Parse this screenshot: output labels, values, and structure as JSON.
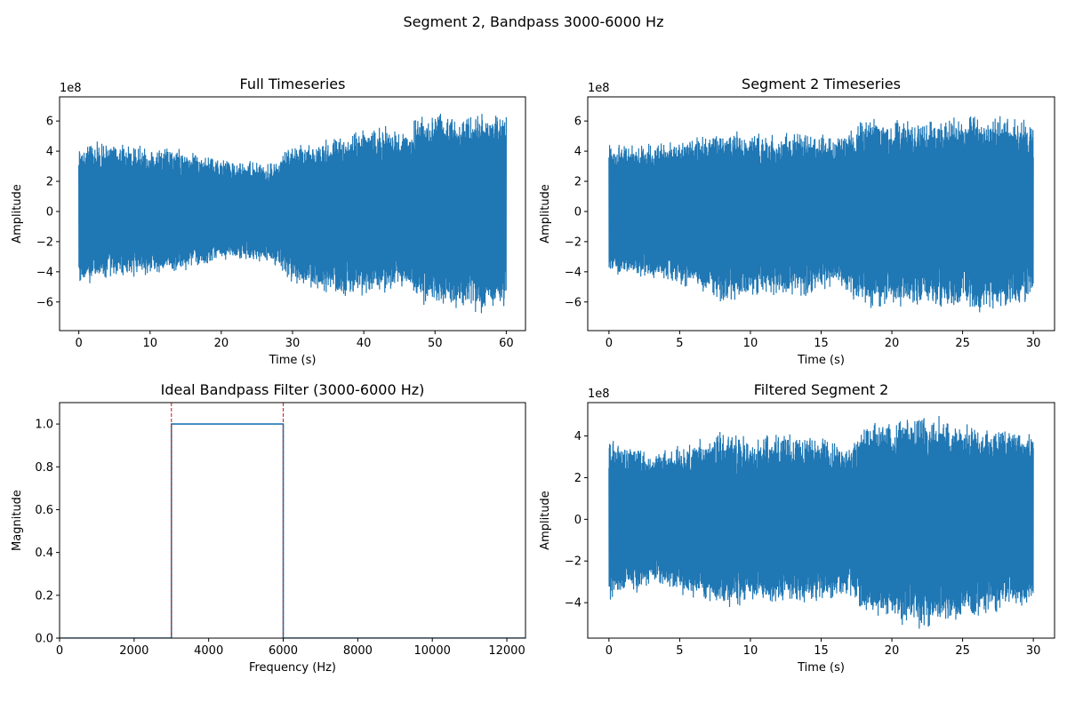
{
  "figure": {
    "suptitle": "Segment 2, Bandpass 3000-6000 Hz"
  },
  "chart_data": [
    {
      "type": "line",
      "title": "Full Timeseries",
      "xlabel": "Time (s)",
      "ylabel": "Amplitude",
      "y_offset_text": "1e8",
      "xlim": [
        -2.7,
        62.7
      ],
      "ylim": [
        -7.9,
        7.6
      ],
      "xticks": [
        0,
        10,
        20,
        30,
        40,
        50,
        60
      ],
      "xtick_labels": [
        "0",
        "10",
        "20",
        "30",
        "40",
        "50",
        "60"
      ],
      "yticks": [
        -6,
        -4,
        -2,
        0,
        2,
        4,
        6
      ],
      "ytick_labels": [
        "−6",
        "−4",
        "−2",
        "0",
        "2",
        "4",
        "6"
      ],
      "color": "#1f77b4",
      "signal": {
        "x_range": [
          0,
          60
        ],
        "envelope_x": [
          0,
          2,
          4,
          6,
          8,
          10,
          12,
          14,
          16,
          18,
          20,
          22,
          24,
          26,
          28,
          30,
          32,
          34,
          36,
          38,
          40,
          42,
          44,
          46,
          48,
          50,
          52,
          54,
          56,
          58,
          60
        ],
        "envelope_upper": [
          4.5,
          4.7,
          4.6,
          4.5,
          4.4,
          4.4,
          4.5,
          4.3,
          4.0,
          3.8,
          3.6,
          3.4,
          3.5,
          3.3,
          3.6,
          4.5,
          4.6,
          4.8,
          5.0,
          5.3,
          5.6,
          5.8,
          5.7,
          5.6,
          6.5,
          6.6,
          6.6,
          6.5,
          6.8,
          6.9,
          6.5
        ],
        "envelope_lower": [
          -4.9,
          -4.8,
          -4.6,
          -4.5,
          -4.4,
          -4.4,
          -4.5,
          -4.2,
          -3.9,
          -3.6,
          -3.4,
          -3.3,
          -3.4,
          -3.4,
          -3.7,
          -5.0,
          -5.1,
          -5.3,
          -5.8,
          -6.0,
          -5.7,
          -5.5,
          -5.4,
          -5.3,
          -6.4,
          -6.5,
          -6.4,
          -6.8,
          -7.0,
          -6.9,
          -6.3
        ]
      }
    },
    {
      "type": "line",
      "title": "Segment 2 Timeseries",
      "xlabel": "Time (s)",
      "ylabel": "Amplitude",
      "y_offset_text": "1e8",
      "xlim": [
        -1.5,
        31.5
      ],
      "ylim": [
        -7.9,
        7.6
      ],
      "xticks": [
        0,
        5,
        10,
        15,
        20,
        25,
        30
      ],
      "xtick_labels": [
        "0",
        "5",
        "10",
        "15",
        "20",
        "25",
        "30"
      ],
      "yticks": [
        -6,
        -4,
        -2,
        0,
        2,
        4,
        6
      ],
      "ytick_labels": [
        "−6",
        "−4",
        "−2",
        "0",
        "2",
        "4",
        "6"
      ],
      "color": "#1f77b4",
      "signal": {
        "x_range": [
          0,
          30
        ],
        "envelope_x": [
          0,
          2,
          4,
          6,
          8,
          10,
          12,
          14,
          16,
          17,
          18,
          20,
          22,
          24,
          26,
          28,
          30
        ],
        "envelope_upper": [
          4.6,
          4.5,
          4.7,
          5.0,
          5.5,
          5.3,
          5.2,
          5.5,
          4.9,
          5.5,
          6.5,
          6.3,
          6.0,
          6.3,
          6.5,
          6.7,
          6.2
        ],
        "envelope_lower": [
          -4.4,
          -4.4,
          -4.8,
          -5.3,
          -6.2,
          -5.8,
          -5.6,
          -5.8,
          -5.0,
          -5.6,
          -6.6,
          -6.4,
          -6.5,
          -6.5,
          -6.9,
          -6.4,
          -6.0
        ]
      }
    },
    {
      "type": "line",
      "title": "Ideal Bandpass Filter (3000-6000 Hz)",
      "xlabel": "Frequency (Hz)",
      "ylabel": "Magnitude",
      "xlim": [
        0,
        12500
      ],
      "ylim": [
        0,
        1.1
      ],
      "xticks": [
        0,
        2000,
        4000,
        6000,
        8000,
        10000,
        12000
      ],
      "xtick_labels": [
        "0",
        "2000",
        "4000",
        "6000",
        "8000",
        "10000",
        "12000"
      ],
      "yticks": [
        0.0,
        0.2,
        0.4,
        0.6,
        0.8,
        1.0
      ],
      "ytick_labels": [
        "0.0",
        "0.2",
        "0.4",
        "0.6",
        "0.8",
        "1.0"
      ],
      "color": "#1f77b4",
      "cutoff_color": "#d62728",
      "x": [
        0,
        3000,
        3000,
        6000,
        6000,
        12500
      ],
      "y": [
        0,
        0,
        1,
        1,
        0,
        0
      ],
      "cutoffs": [
        3000,
        6000
      ]
    },
    {
      "type": "line",
      "title": "Filtered Segment 2",
      "xlabel": "Time (s)",
      "ylabel": "Amplitude",
      "y_offset_text": "1e8",
      "xlim": [
        -1.5,
        31.5
      ],
      "ylim": [
        -5.7,
        5.6
      ],
      "xticks": [
        0,
        5,
        10,
        15,
        20,
        25,
        30
      ],
      "xtick_labels": [
        "0",
        "5",
        "10",
        "15",
        "20",
        "25",
        "30"
      ],
      "yticks": [
        -4,
        -2,
        0,
        2,
        4
      ],
      "ytick_labels": [
        "−4",
        "−2",
        "0",
        "2",
        "4"
      ],
      "color": "#1f77b4",
      "signal": {
        "x_range": [
          0,
          30
        ],
        "envelope_x": [
          0,
          1,
          2,
          3,
          4,
          6,
          8,
          10,
          12,
          14,
          16,
          17,
          18,
          20,
          22,
          24,
          26,
          28,
          30
        ],
        "envelope_upper": [
          4.0,
          3.6,
          3.7,
          3.2,
          3.4,
          3.8,
          4.3,
          4.0,
          4.1,
          4.2,
          3.8,
          3.6,
          4.7,
          4.8,
          5.0,
          5.0,
          4.6,
          4.5,
          4.3
        ],
        "envelope_lower": [
          -4.0,
          -3.6,
          -3.6,
          -3.2,
          -3.4,
          -3.8,
          -4.3,
          -4.1,
          -4.1,
          -4.2,
          -3.9,
          -3.7,
          -4.8,
          -5.1,
          -5.3,
          -5.1,
          -4.7,
          -4.5,
          -4.2
        ]
      }
    }
  ]
}
